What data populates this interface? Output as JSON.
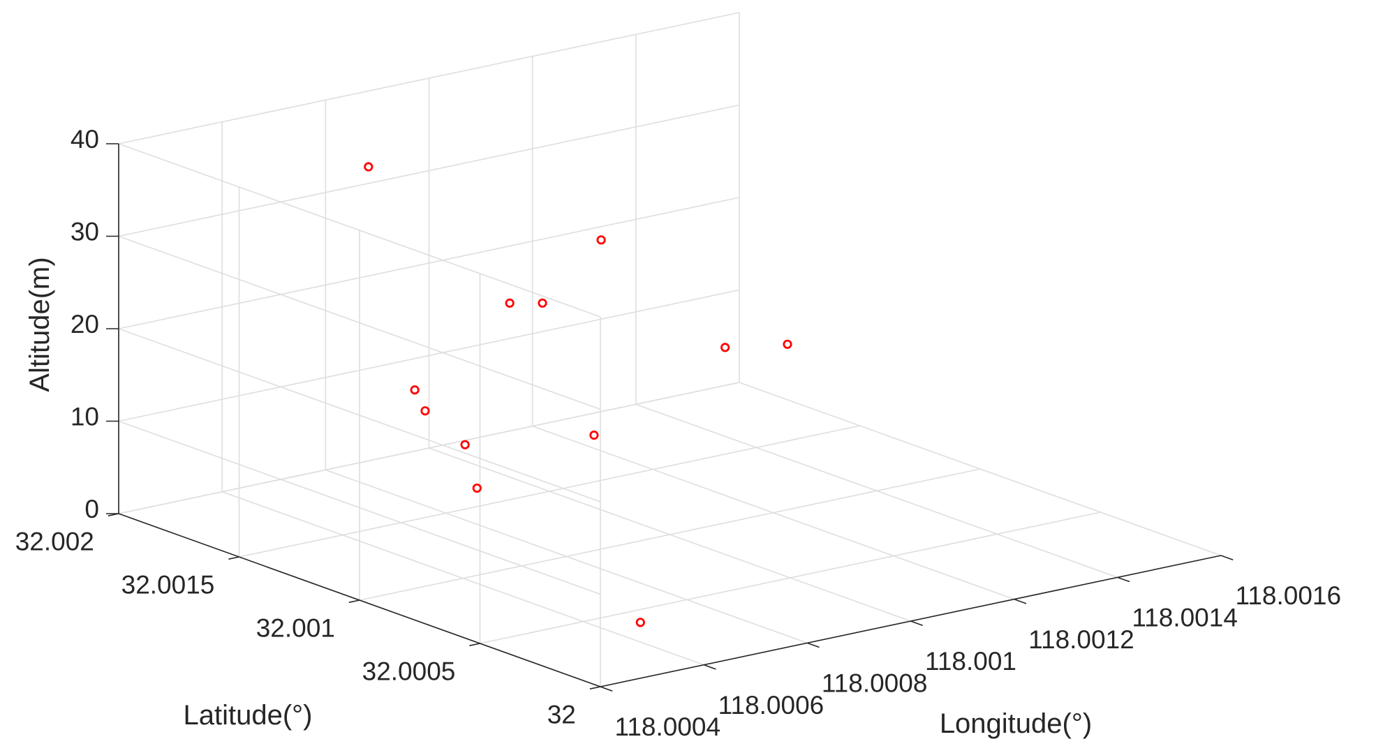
{
  "chart_data": {
    "type": "scatter",
    "title": "",
    "xlabel": "Longitude(°)",
    "ylabel": "Latitude(°)",
    "zlabel": "Altitude(m)",
    "xlim": [
      118.0004,
      118.0016
    ],
    "ylim": [
      32,
      32.002
    ],
    "zlim": [
      0,
      40
    ],
    "xticks": [
      118.0004,
      118.0006,
      118.0008,
      118.001,
      118.0012,
      118.0014,
      118.0016
    ],
    "xtick_labels": [
      "118.0004",
      "118.0006",
      "118.0008",
      "118.001",
      "118.0012",
      "118.0014",
      "118.0016"
    ],
    "yticks": [
      32,
      32.0005,
      32.001,
      32.0015,
      32.002
    ],
    "ytick_labels": [
      "32",
      "32.0005",
      "32.001",
      "32.0015",
      "32.002"
    ],
    "zticks": [
      0,
      10,
      20,
      30,
      40
    ],
    "ztick_labels": [
      "0",
      "10",
      "20",
      "30",
      "40"
    ],
    "grid": true,
    "marker": "circle",
    "marker_color": "#ff0000",
    "points": [
      {
        "x": 118.00072,
        "y": 32.00165,
        "z": 37
      },
      {
        "x": 118.00051,
        "y": 32.00007,
        "z": 5
      },
      {
        "x": 118.00062,
        "y": 32.0012,
        "z": 16
      },
      {
        "x": 118.0006,
        "y": 32.0012,
        "z": 18.5
      },
      {
        "x": 118.0009,
        "y": 32.00145,
        "z": 22
      },
      {
        "x": 118.00094,
        "y": 32.0014,
        "z": 22
      },
      {
        "x": 118.0011,
        "y": 32.0015,
        "z": 26
      },
      {
        "x": 118.0012,
        "y": 32.0012,
        "z": 16
      },
      {
        "x": 118.0009,
        "y": 32.0011,
        "z": 11
      },
      {
        "x": 118.00093,
        "y": 32.0017,
        "z": 4
      },
      {
        "x": 118.00086,
        "y": 32.0015,
        "z": 2
      },
      {
        "x": 118.0016,
        "y": 32.0018,
        "z": 6
      }
    ]
  }
}
